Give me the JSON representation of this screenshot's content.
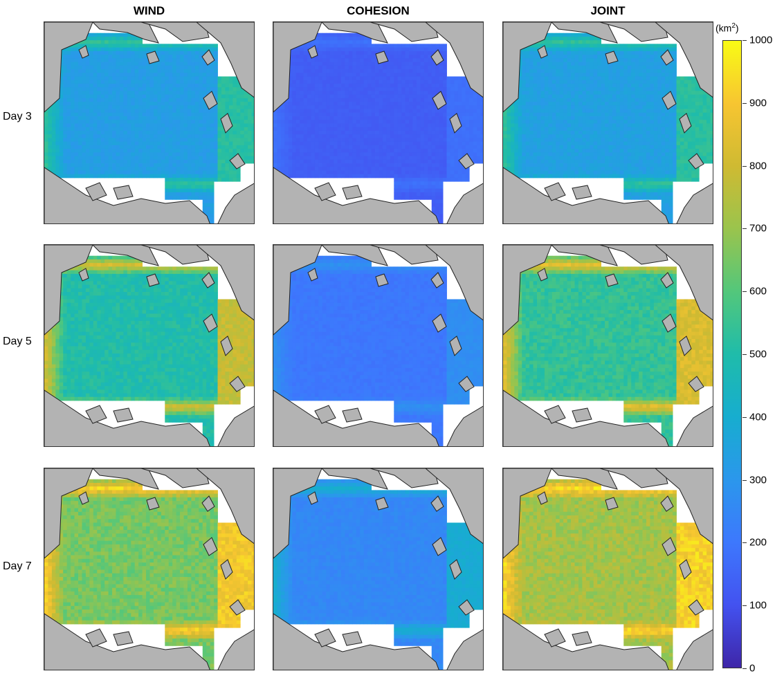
{
  "columns": [
    "WIND",
    "COHESION",
    "JOINT"
  ],
  "rows": [
    "Day 3",
    "Day 5",
    "Day 7"
  ],
  "colorbar": {
    "unit_prefix": "(km",
    "unit_exp": "2",
    "unit_suffix": ")",
    "min": 0,
    "max": 1000,
    "ticks": [
      "0",
      "100",
      "200",
      "300",
      "400",
      "500",
      "600",
      "700",
      "800",
      "900",
      "1000"
    ]
  },
  "chart_data": {
    "type": "heatmap",
    "title": "",
    "colorbar_range": [
      0,
      1000
    ],
    "colorbar_unit": "km^2",
    "panels": [
      {
        "column": "WIND",
        "row": "Day 3",
        "typical_value": 330,
        "max_value": 600
      },
      {
        "column": "COHESION",
        "row": "Day 3",
        "typical_value": 130,
        "max_value": 200
      },
      {
        "column": "JOINT",
        "row": "Day 3",
        "typical_value": 340,
        "max_value": 600
      },
      {
        "column": "WIND",
        "row": "Day 5",
        "typical_value": 500,
        "max_value": 900
      },
      {
        "column": "COHESION",
        "row": "Day 5",
        "typical_value": 200,
        "max_value": 300
      },
      {
        "column": "JOINT",
        "row": "Day 5",
        "typical_value": 540,
        "max_value": 950
      },
      {
        "column": "WIND",
        "row": "Day 7",
        "typical_value": 650,
        "max_value": 1000
      },
      {
        "column": "COHESION",
        "row": "Day 7",
        "typical_value": 250,
        "max_value": 450
      },
      {
        "column": "JOINT",
        "row": "Day 7",
        "typical_value": 720,
        "max_value": 1000
      }
    ]
  }
}
